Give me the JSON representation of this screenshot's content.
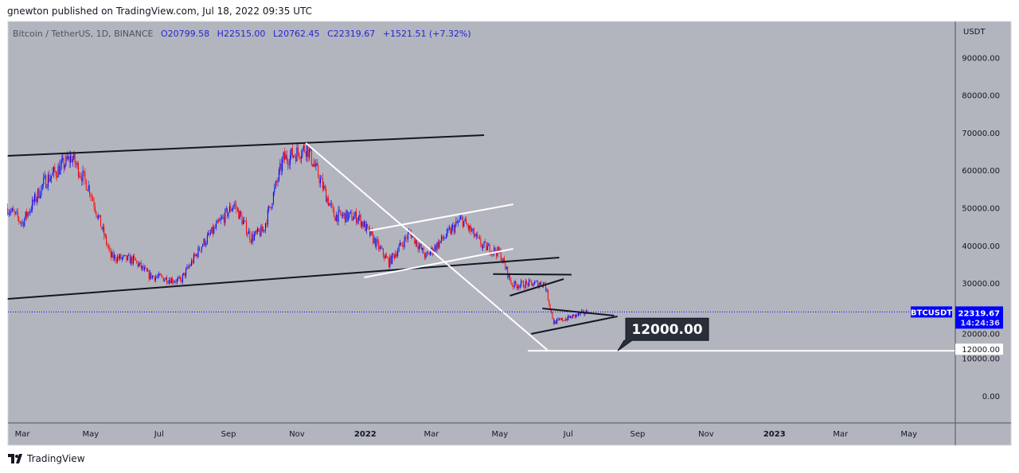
{
  "header": {
    "publish_line": "gnewton published on TradingView.com, Jul 18, 2022 09:35 UTC"
  },
  "legend": {
    "symbol": "Bitcoin / TetherUS, 1D, BINANCE",
    "open": "O20799.58",
    "high": "H22515.00",
    "low": "L20762.45",
    "close": "C22319.67",
    "change": "+1521.51 (+7.32%)"
  },
  "footer": {
    "brand": "TradingView"
  },
  "colors": {
    "background": "#b2b5be",
    "up": "#0000ff",
    "down": "#ff0000",
    "accent": "#0000ff"
  },
  "chart_data": {
    "type": "candlestick",
    "symbol": "BTCUSDT",
    "currency_label": "USDT",
    "last_price": "22319.67",
    "countdown": "14:24:36",
    "ylim": [
      -5000,
      100000
    ],
    "y_ticks": [
      "90000.00",
      "80000.00",
      "70000.00",
      "60000.00",
      "50000.00",
      "40000.00",
      "30000.00",
      "20000.00",
      "10000.00",
      "0.00"
    ],
    "y_tick_values": [
      90000,
      80000,
      70000,
      60000,
      50000,
      40000,
      30000,
      20000,
      10000,
      0
    ],
    "x_ticks": [
      "Mar",
      "May",
      "Jul",
      "Sep",
      "Nov",
      "2022",
      "Mar",
      "May",
      "Jul",
      "Sep",
      "Nov",
      "2023",
      "Mar",
      "May"
    ],
    "x_tick_days": [
      0,
      61,
      122,
      184,
      245,
      306,
      365,
      426,
      487,
      549,
      610,
      671,
      730,
      791
    ],
    "x_axis_note": "days since 2021-03-01",
    "price_path": [
      [
        -13,
        50000
      ],
      [
        0,
        46000
      ],
      [
        20,
        57000
      ],
      [
        44,
        63500
      ],
      [
        60,
        55000
      ],
      [
        79,
        37000
      ],
      [
        100,
        36000
      ],
      [
        113,
        32000
      ],
      [
        141,
        30500
      ],
      [
        160,
        40000
      ],
      [
        189,
        51000
      ],
      [
        204,
        42000
      ],
      [
        215,
        44000
      ],
      [
        233,
        63000
      ],
      [
        254,
        66000
      ],
      [
        265,
        58000
      ],
      [
        278,
        48000
      ],
      [
        300,
        47500
      ],
      [
        327,
        35500
      ],
      [
        346,
        43500
      ],
      [
        360,
        37000
      ],
      [
        392,
        47000
      ],
      [
        410,
        40000
      ],
      [
        426,
        38000
      ],
      [
        437,
        29500
      ],
      [
        466,
        30000
      ],
      [
        474,
        19500
      ],
      [
        504,
        22320
      ]
    ],
    "drawings": [
      {
        "name": "upper-channel-line",
        "color": "#131722",
        "points": [
          [
            -13,
            63850
          ],
          [
            412,
            69340
          ]
        ]
      },
      {
        "name": "lower-channel-line",
        "color": "#131722",
        "points": [
          [
            -13,
            25800
          ],
          [
            479,
            36790
          ]
        ]
      },
      {
        "name": "diagonal-trendline",
        "color": "#ffffff",
        "points": [
          [
            253,
            67230
          ],
          [
            469,
            12050
          ]
        ]
      },
      {
        "name": "rising-wedge-upper",
        "color": "#ffffff",
        "points": [
          [
            310,
            43970
          ],
          [
            438,
            50950
          ]
        ]
      },
      {
        "name": "rising-wedge-lower",
        "color": "#ffffff",
        "points": [
          [
            305,
            31500
          ],
          [
            438,
            39110
          ]
        ]
      },
      {
        "name": "flag-top",
        "color": "#131722",
        "points": [
          [
            420,
            32400
          ],
          [
            490,
            32250
          ]
        ]
      },
      {
        "name": "flag-bottom",
        "color": "#131722",
        "points": [
          [
            435,
            26640
          ],
          [
            483,
            31080
          ]
        ]
      },
      {
        "name": "triangle-upper",
        "color": "#131722",
        "points": [
          [
            464,
            23260
          ],
          [
            528,
            21350
          ]
        ]
      },
      {
        "name": "triangle-lower",
        "color": "#131722",
        "points": [
          [
            454,
            16490
          ],
          [
            531,
            21140
          ]
        ]
      },
      {
        "name": "target-line",
        "color": "#ffffff",
        "points": [
          [
            451,
            12000
          ],
          [
            832,
            12000
          ]
        ]
      }
    ],
    "target_label": "12000.00",
    "target_axis_label": "12000.00"
  }
}
